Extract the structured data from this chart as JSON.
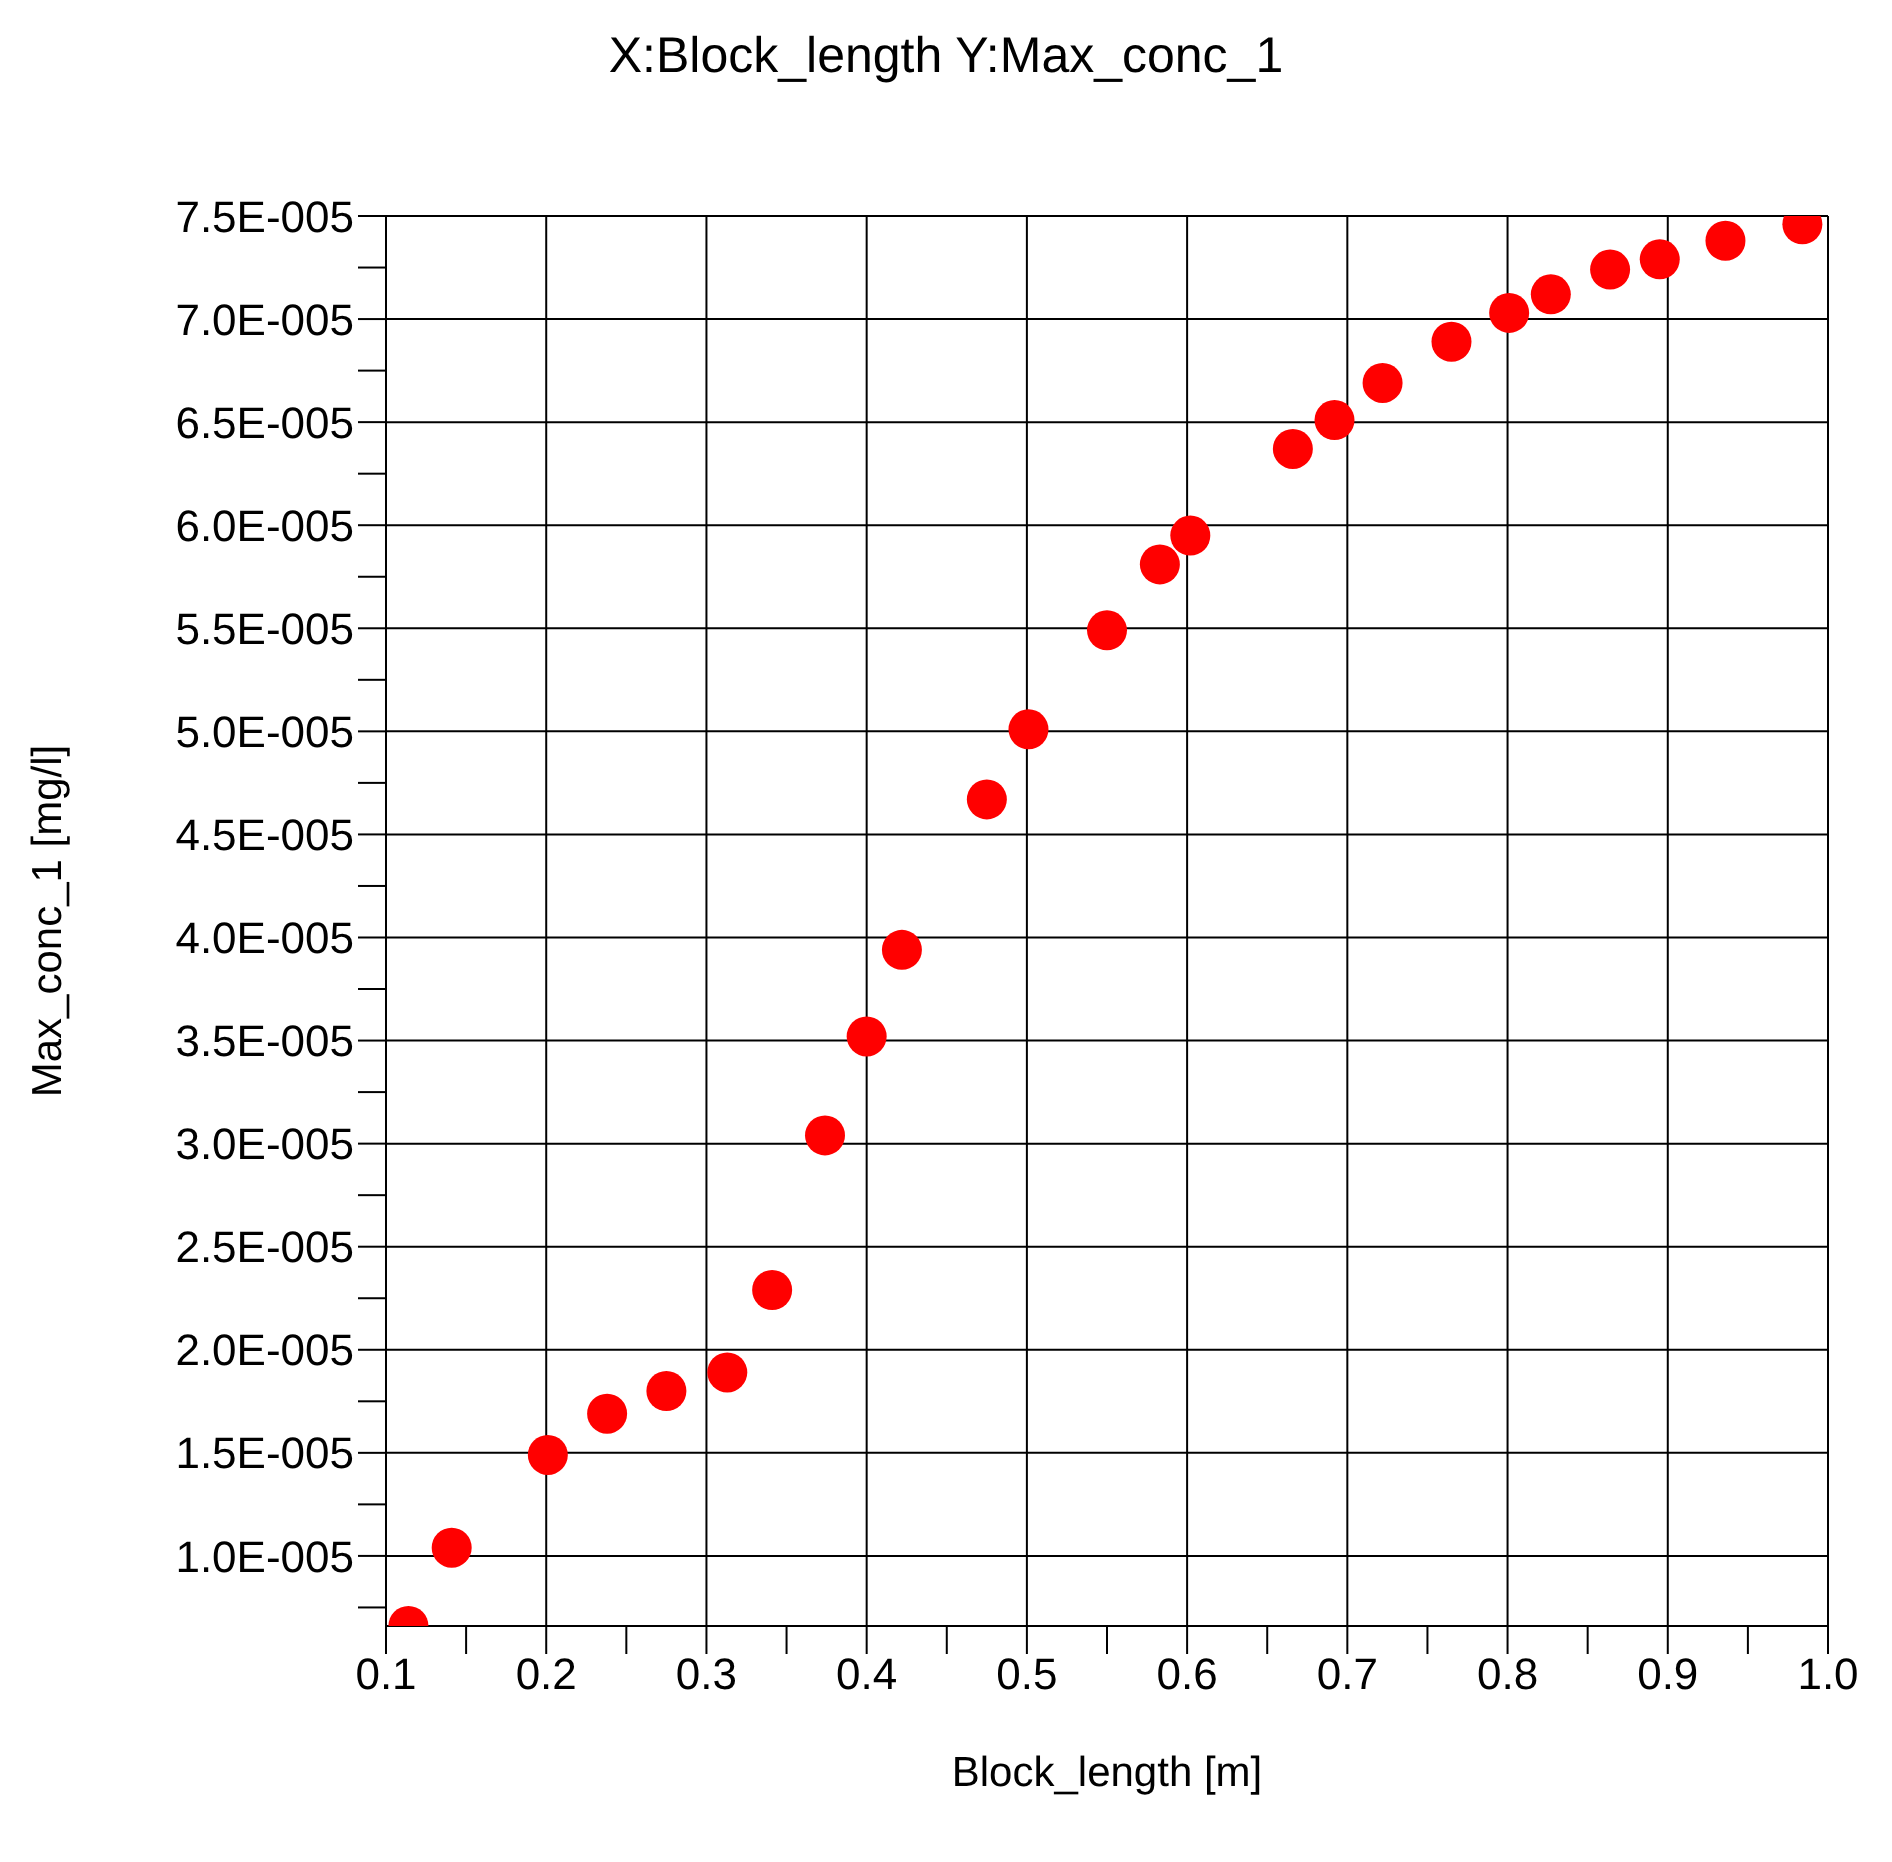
{
  "chart_data": {
    "type": "scatter",
    "title": "X:Block_length Y:Max_conc_1",
    "xlabel": "Block_length [m]",
    "ylabel": "Max_conc_1 [mg/l]",
    "x": [
      0.114,
      0.141,
      0.201,
      0.238,
      0.275,
      0.313,
      0.341,
      0.374,
      0.4,
      0.422,
      0.475,
      0.501,
      0.55,
      0.583,
      0.602,
      0.666,
      0.692,
      0.722,
      0.765,
      0.801,
      0.827,
      0.864,
      0.895,
      0.936,
      0.984
    ],
    "series": [
      {
        "color": "#ff0000",
        "values": [
          6.6e-06,
          1.04e-05,
          1.49e-05,
          1.69e-05,
          1.8e-05,
          1.89e-05,
          2.29e-05,
          3.04e-05,
          3.52e-05,
          3.94e-05,
          4.67e-05,
          5.01e-05,
          5.49e-05,
          5.81e-05,
          5.95e-05,
          6.37e-05,
          6.51e-05,
          6.69e-05,
          6.89e-05,
          7.03e-05,
          7.12e-05,
          7.24e-05,
          7.29e-05,
          7.38e-05,
          7.46e-05
        ]
      }
    ],
    "marker": "circle",
    "grid": true,
    "xlim": [
      0.1,
      1.0
    ],
    "xticks": [
      0.1,
      {
        "value": 0.15,
        "label": null
      },
      0.2,
      {
        "value": 0.25,
        "label": null
      },
      0.3,
      {
        "value": 0.35,
        "label": null
      },
      0.4,
      {
        "value": 0.45,
        "label": null
      },
      0.5,
      {
        "value": 0.55,
        "label": null
      },
      0.6,
      {
        "value": 0.65,
        "label": null
      },
      0.7,
      {
        "value": 0.75,
        "label": null
      },
      0.8,
      {
        "value": 0.85,
        "label": null
      },
      0.9,
      {
        "value": 0.95,
        "label": null
      },
      {
        "value": 1.0,
        "label": "1.0"
      }
    ],
    "ylim": [
      6.6e-06,
      7.5e-05
    ],
    "yticks": [
      {
        "value": 7.5e-06,
        "label": null
      },
      {
        "value": 1e-05,
        "label": "1.0E-005"
      },
      {
        "value": 1.25e-05,
        "label": null
      },
      {
        "value": 1.5e-05,
        "label": "1.5E-005"
      },
      {
        "value": 1.75e-05,
        "label": null
      },
      {
        "value": 2e-05,
        "label": "2.0E-005"
      },
      {
        "value": 2.25e-05,
        "label": null
      },
      {
        "value": 2.5e-05,
        "label": "2.5E-005"
      },
      {
        "value": 2.75e-05,
        "label": null
      },
      {
        "value": 3e-05,
        "label": "3.0E-005"
      },
      {
        "value": 3.25e-05,
        "label": null
      },
      {
        "value": 3.5e-05,
        "label": "3.5E-005"
      },
      {
        "value": 3.75e-05,
        "label": null
      },
      {
        "value": 4e-05,
        "label": "4.0E-005"
      },
      {
        "value": 4.25e-05,
        "label": null
      },
      {
        "value": 4.5e-05,
        "label": "4.5E-005"
      },
      {
        "value": 4.75e-05,
        "label": null
      },
      {
        "value": 5e-05,
        "label": "5.0E-005"
      },
      {
        "value": 5.25e-05,
        "label": null
      },
      {
        "value": 5.5e-05,
        "label": "5.5E-005"
      },
      {
        "value": 5.75e-05,
        "label": null
      },
      {
        "value": 6e-05,
        "label": "6.0E-005"
      },
      {
        "value": 6.25e-05,
        "label": null
      },
      {
        "value": 6.5e-05,
        "label": "6.5E-005"
      },
      {
        "value": 6.75e-05,
        "label": null
      },
      {
        "value": 7e-05,
        "label": "7.0E-005"
      },
      {
        "value": 7.25e-05,
        "label": null
      },
      {
        "value": 7.5e-05,
        "label": "7.5E-005"
      }
    ]
  }
}
